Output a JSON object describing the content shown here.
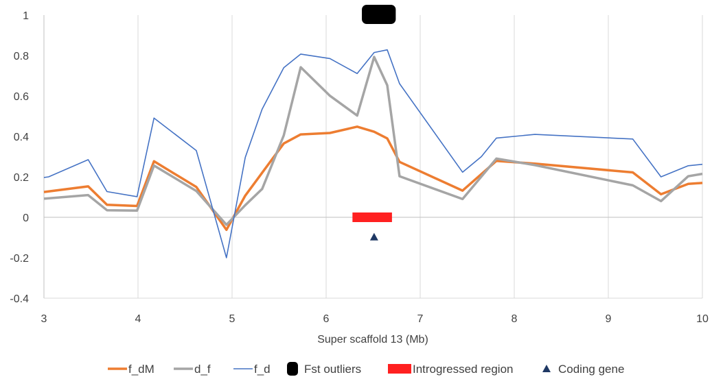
{
  "chart_data": {
    "type": "line",
    "title": "",
    "xlabel": "Super scaffold 13 (Mb)",
    "ylabel": "",
    "xlim": [
      3,
      10
    ],
    "ylim": [
      -0.4,
      1
    ],
    "x_ticks": [
      "3",
      "4",
      "5",
      "6",
      "7",
      "8",
      "9",
      "10"
    ],
    "y_ticks": [
      "1",
      "0.8",
      "0.6",
      "0.4",
      "0.2",
      "0",
      "-0.2",
      "-0.4"
    ],
    "grid": "vertical",
    "legend_position": "bottom",
    "series": [
      {
        "name": "f_dM",
        "color": "#ED7D31",
        "points": [
          [
            3.0,
            0.125
          ],
          [
            3.47,
            0.153
          ],
          [
            3.67,
            0.062
          ],
          [
            3.99,
            0.056
          ],
          [
            4.17,
            0.277
          ],
          [
            4.62,
            0.15
          ],
          [
            4.94,
            -0.062
          ],
          [
            5.14,
            0.107
          ],
          [
            5.55,
            0.365
          ],
          [
            5.73,
            0.41
          ],
          [
            6.04,
            0.417
          ],
          [
            6.33,
            0.448
          ],
          [
            6.51,
            0.423
          ],
          [
            6.65,
            0.39
          ],
          [
            6.78,
            0.274
          ],
          [
            7.45,
            0.132
          ],
          [
            7.81,
            0.279
          ],
          [
            8.22,
            0.265
          ],
          [
            9.26,
            0.222
          ],
          [
            9.56,
            0.114
          ],
          [
            9.85,
            0.165
          ],
          [
            10.0,
            0.17
          ]
        ]
      },
      {
        "name": "d_f",
        "color": "#A5A5A5",
        "points": [
          [
            3.0,
            0.092
          ],
          [
            3.47,
            0.11
          ],
          [
            3.67,
            0.035
          ],
          [
            3.99,
            0.033
          ],
          [
            4.17,
            0.256
          ],
          [
            4.62,
            0.13
          ],
          [
            4.94,
            -0.037
          ],
          [
            5.14,
            0.06
          ],
          [
            5.32,
            0.14
          ],
          [
            5.55,
            0.405
          ],
          [
            5.73,
            0.742
          ],
          [
            6.04,
            0.601
          ],
          [
            6.33,
            0.503
          ],
          [
            6.51,
            0.793
          ],
          [
            6.65,
            0.653
          ],
          [
            6.78,
            0.203
          ],
          [
            7.45,
            0.09
          ],
          [
            7.81,
            0.29
          ],
          [
            8.22,
            0.258
          ],
          [
            9.26,
            0.158
          ],
          [
            9.56,
            0.08
          ],
          [
            9.85,
            0.203
          ],
          [
            10.0,
            0.215
          ]
        ]
      },
      {
        "name": "f_d",
        "color": "#4472C4",
        "points": [
          [
            3.0,
            0.197
          ],
          [
            3.05,
            0.2
          ],
          [
            3.47,
            0.285
          ],
          [
            3.67,
            0.127
          ],
          [
            3.99,
            0.102
          ],
          [
            4.17,
            0.491
          ],
          [
            4.62,
            0.33
          ],
          [
            4.94,
            -0.2
          ],
          [
            5.14,
            0.296
          ],
          [
            5.32,
            0.535
          ],
          [
            5.55,
            0.74
          ],
          [
            5.73,
            0.807
          ],
          [
            6.04,
            0.785
          ],
          [
            6.33,
            0.711
          ],
          [
            6.51,
            0.815
          ],
          [
            6.65,
            0.828
          ],
          [
            6.78,
            0.661
          ],
          [
            7.45,
            0.223
          ],
          [
            7.65,
            0.3
          ],
          [
            7.81,
            0.392
          ],
          [
            8.22,
            0.41
          ],
          [
            9.26,
            0.387
          ],
          [
            9.56,
            0.2
          ],
          [
            9.85,
            0.255
          ],
          [
            10.0,
            0.262
          ]
        ]
      }
    ],
    "markers": [
      {
        "name": "Fst outliers",
        "shape": "rounded-rect",
        "color": "#000000",
        "x_start": 6.38,
        "x_end": 6.74,
        "y": 1.0
      },
      {
        "name": "Introgressed region",
        "shape": "bar",
        "color": "#FF2020",
        "x_start": 6.28,
        "x_end": 6.7,
        "y": 0.0
      },
      {
        "name": "Coding gene",
        "shape": "triangle",
        "color": "#1F3864",
        "x": 6.51,
        "y": -0.05
      }
    ]
  }
}
